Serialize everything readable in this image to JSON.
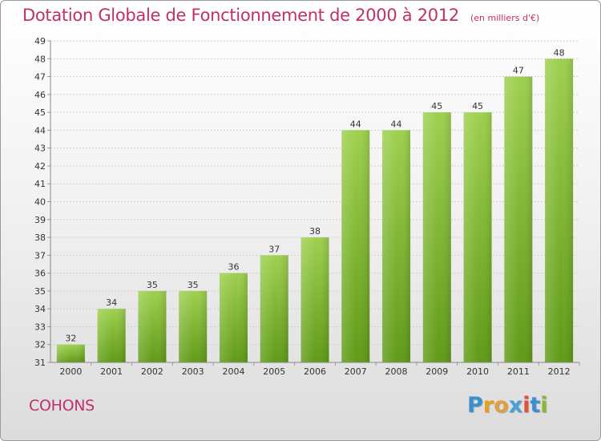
{
  "header": {
    "title": "Dotation Globale de Fonctionnement de 2000 à 2012",
    "subtitle": "(en milliers d'€)"
  },
  "footer": {
    "city": "COHONS",
    "logo": {
      "letters": [
        "P",
        "r",
        "o",
        "x",
        "i",
        "t",
        "i"
      ],
      "colors": [
        "#3a8fd0",
        "#e8a020",
        "#e0a040",
        "#4aa0d8",
        "#e2503a",
        "#3a8fd0",
        "#8ab830"
      ]
    }
  },
  "chart_data": {
    "type": "bar",
    "title": "Dotation Globale de Fonctionnement de 2000 à 2012",
    "subtitle": "(en milliers d'€)",
    "categories": [
      "2000",
      "2001",
      "2002",
      "2003",
      "2004",
      "2005",
      "2006",
      "2007",
      "2008",
      "2009",
      "2010",
      "2011",
      "2012"
    ],
    "values": [
      32,
      34,
      35,
      35,
      36,
      37,
      38,
      44,
      44,
      45,
      45,
      47,
      48
    ],
    "ylim": [
      31,
      49
    ],
    "yticks": [
      31,
      32,
      33,
      34,
      35,
      36,
      37,
      38,
      39,
      40,
      41,
      42,
      43,
      44,
      45,
      46,
      47,
      48,
      49
    ],
    "grid": true,
    "colors": {
      "bar_top": "#9ed04e",
      "bar_bottom": "#5f9a16",
      "grid": "#cfcfcf",
      "axis_text": "#333333"
    }
  }
}
